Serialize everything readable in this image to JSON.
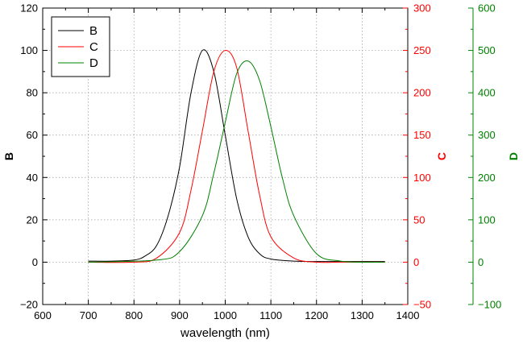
{
  "chart_data": {
    "type": "line",
    "xlabel": "wavelength (nm)",
    "x_ticks": [
      600,
      700,
      800,
      900,
      1000,
      1100,
      1200,
      1300,
      1400
    ],
    "xlim": [
      600,
      1400
    ],
    "grid": true,
    "legend_placement": "top-left",
    "axes": [
      {
        "id": "B",
        "label": "B",
        "ylim": [
          -20,
          120
        ],
        "ticks": [
          -20,
          0,
          20,
          40,
          60,
          80,
          100,
          120
        ],
        "color": "#000000",
        "position": "left"
      },
      {
        "id": "C",
        "label": "C",
        "ylim": [
          -50,
          300
        ],
        "ticks": [
          -50,
          0,
          50,
          100,
          150,
          200,
          250,
          300
        ],
        "color": "#ff0000",
        "position": "right"
      },
      {
        "id": "D",
        "label": "D",
        "ylim": [
          -100,
          600
        ],
        "ticks": [
          -100,
          0,
          100,
          200,
          300,
          400,
          500,
          600
        ],
        "color": "#008000",
        "position": "right-offset"
      }
    ],
    "series": [
      {
        "name": "B",
        "axis": "B",
        "color": "#000000",
        "x": [
          700,
          750,
          800,
          825,
          850,
          875,
          900,
          925,
          950,
          975,
          1000,
          1025,
          1050,
          1075,
          1100,
          1150,
          1200,
          1250,
          1300,
          1350
        ],
        "y": [
          0.5,
          0.5,
          1,
          3,
          8,
          22,
          45,
          80,
          100,
          90,
          60,
          30,
          12,
          4,
          1.5,
          0.5,
          0.3,
          0.3,
          0.3,
          0.3
        ]
      },
      {
        "name": "C",
        "axis": "C",
        "color": "#ff0000",
        "x": [
          700,
          800,
          850,
          900,
          925,
          950,
          975,
          1000,
          1025,
          1050,
          1075,
          1100,
          1150,
          1200,
          1250,
          1300,
          1350
        ],
        "y": [
          0,
          0,
          5,
          35,
          85,
          155,
          225,
          250,
          230,
          155,
          80,
          30,
          5,
          0,
          0,
          0,
          0
        ]
      },
      {
        "name": "D",
        "axis": "D",
        "color": "#008000",
        "x": [
          700,
          850,
          900,
          950,
          975,
          1000,
          1025,
          1050,
          1075,
          1100,
          1125,
          1150,
          1200,
          1250,
          1300,
          1350
        ],
        "y": [
          0,
          5,
          25,
          110,
          210,
          330,
          445,
          475,
          430,
          320,
          200,
          110,
          20,
          3,
          0,
          0
        ]
      }
    ]
  }
}
